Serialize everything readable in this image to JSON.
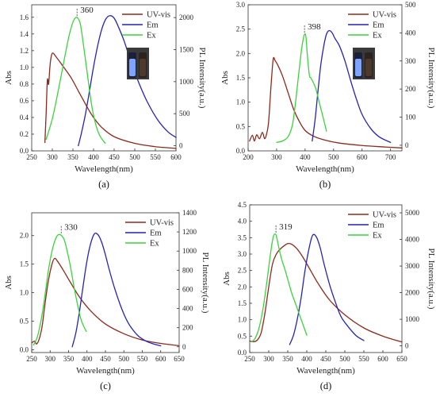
{
  "colors": {
    "uvvis": "#8B2A1E",
    "em": "#2424B4",
    "ex": "#3CD23C",
    "axis": "#333333"
  },
  "chart_data": [
    {
      "type": "line",
      "panel_label": "(a)",
      "xlabel": "Wavelength(nm)",
      "ylabel": "Abs",
      "y2label": "PL Intensity(a.u.)",
      "xlim": [
        250,
        600
      ],
      "ylim": [
        0,
        1.75
      ],
      "y2lim": [
        -80,
        2200
      ],
      "xticks": [
        "250",
        "300",
        "350",
        "400",
        "450",
        "500",
        "550",
        "600"
      ],
      "yticks": [
        "0.0",
        "0.2",
        "0.4",
        "0.6",
        "0.8",
        "1.0",
        "1.2",
        "1.4",
        "1.6"
      ],
      "y2ticks": [
        "0",
        "500",
        "1000",
        "1500",
        "2000"
      ],
      "peak_label": "360",
      "peak_x": 360,
      "inset_photo": true,
      "legend": [
        "UV-vis",
        "Em",
        "Ex"
      ],
      "series": [
        {
          "name": "UV-vis",
          "axis": "left",
          "color": "#8B2A1E",
          "x": [
            282,
            285,
            288,
            291,
            295,
            300,
            310,
            325,
            345,
            365,
            385,
            400,
            420,
            450,
            500,
            550,
            600
          ],
          "y": [
            0.1,
            0.45,
            0.85,
            0.8,
            1.05,
            1.17,
            1.12,
            1.02,
            0.88,
            0.7,
            0.52,
            0.4,
            0.28,
            0.17,
            0.09,
            0.05,
            0.03
          ]
        },
        {
          "name": "Em",
          "axis": "right",
          "color": "#2424B4",
          "x": [
            363,
            370,
            380,
            390,
            400,
            410,
            420,
            430,
            440,
            450,
            460,
            475,
            490,
            510,
            530,
            555,
            580,
            600
          ],
          "y": [
            0,
            180,
            480,
            850,
            1230,
            1560,
            1820,
            1980,
            2030,
            1990,
            1860,
            1620,
            1320,
            980,
            690,
            410,
            220,
            130
          ]
        },
        {
          "name": "Ex",
          "axis": "right",
          "color": "#3CD23C",
          "x": [
            285,
            300,
            315,
            330,
            340,
            350,
            357,
            362,
            368,
            375,
            385,
            395,
            405,
            415,
            428
          ],
          "y": [
            100,
            420,
            880,
            1380,
            1700,
            1930,
            2000,
            1990,
            1900,
            1600,
            1120,
            650,
            340,
            160,
            40
          ]
        }
      ]
    },
    {
      "type": "line",
      "panel_label": "(b)",
      "xlabel": "Wavelength(nm)",
      "ylabel": "Abs",
      "y2label": "PL Intensity(a.u.)",
      "xlim": [
        200,
        740
      ],
      "ylim": [
        0,
        3.0
      ],
      "y2lim": [
        -20,
        500
      ],
      "xticks": [
        "200",
        "300",
        "400",
        "500",
        "600",
        "700"
      ],
      "yticks": [
        "0.0",
        "0.5",
        "1.0",
        "1.5",
        "2.0",
        "2.5",
        "3.0"
      ],
      "y2ticks": [
        "0",
        "100",
        "200",
        "300",
        "400",
        "500"
      ],
      "peak_label": "398",
      "peak_x": 398,
      "inset_photo": true,
      "legend": [
        "UV-vis",
        "Em",
        "Ex"
      ],
      "series": [
        {
          "name": "UV-vis",
          "axis": "left",
          "color": "#8B2A1E",
          "x": [
            205,
            215,
            222,
            230,
            240,
            250,
            258,
            265,
            272,
            280,
            288,
            295,
            305,
            320,
            340,
            360,
            380,
            400,
            430,
            470,
            520,
            600,
            680,
            740
          ],
          "y": [
            0.2,
            0.32,
            0.2,
            0.33,
            0.25,
            0.38,
            0.25,
            0.35,
            0.6,
            1.3,
            1.88,
            1.85,
            1.75,
            1.55,
            1.2,
            0.85,
            0.6,
            0.42,
            0.3,
            0.22,
            0.16,
            0.11,
            0.08,
            0.06
          ]
        },
        {
          "name": "Em",
          "axis": "right",
          "color": "#2424B4",
          "x": [
            425,
            435,
            445,
            455,
            465,
            475,
            485,
            495,
            505,
            520,
            540,
            560,
            580,
            600,
            630,
            660,
            700
          ],
          "y": [
            15,
            90,
            190,
            285,
            350,
            395,
            408,
            400,
            380,
            355,
            300,
            230,
            165,
            110,
            60,
            30,
            10
          ]
        },
        {
          "name": "Ex",
          "axis": "right",
          "color": "#3CD23C",
          "x": [
            300,
            320,
            340,
            355,
            365,
            375,
            385,
            392,
            398,
            403,
            408,
            415,
            420,
            428,
            438,
            448,
            458,
            468,
            475
          ],
          "y": [
            10,
            15,
            30,
            70,
            140,
            230,
            320,
            370,
            395,
            385,
            320,
            250,
            240,
            225,
            200,
            160,
            120,
            80,
            50
          ]
        }
      ]
    },
    {
      "type": "line",
      "panel_label": "(c)",
      "xlabel": "Wavelength(nm)",
      "ylabel": "Abs",
      "y2label": "PL Intensity(a.u.)",
      "xlim": [
        250,
        650
      ],
      "ylim": [
        -0.05,
        2.4
      ],
      "y2lim": [
        -60,
        1400
      ],
      "xticks": [
        "250",
        "300",
        "350",
        "400",
        "450",
        "500",
        "550",
        "600",
        "650"
      ],
      "yticks": [
        "0.0",
        "0.5",
        "1.0",
        "1.5",
        "2.0"
      ],
      "y2ticks": [
        "0",
        "200",
        "400",
        "600",
        "800",
        "1000",
        "1200",
        "1400"
      ],
      "peak_label": "330",
      "peak_x": 330,
      "inset_photo": false,
      "legend": [
        "UV-vis",
        "Em",
        "Ex"
      ],
      "series": [
        {
          "name": "UV-vis",
          "axis": "left",
          "color": "#8B2A1E",
          "x": [
            250,
            258,
            263,
            270,
            278,
            286,
            295,
            305,
            312,
            320,
            335,
            355,
            380,
            410,
            450,
            500,
            550,
            600,
            650
          ],
          "y": [
            0.12,
            0.15,
            0.1,
            0.18,
            0.4,
            0.8,
            1.2,
            1.5,
            1.6,
            1.55,
            1.4,
            1.18,
            0.92,
            0.68,
            0.45,
            0.28,
            0.17,
            0.11,
            0.07
          ]
        },
        {
          "name": "Em",
          "axis": "right",
          "color": "#2424B4",
          "x": [
            360,
            370,
            380,
            390,
            400,
            410,
            420,
            430,
            440,
            450,
            460,
            475,
            490,
            505,
            520,
            540,
            560,
            580,
            600
          ],
          "y": [
            0,
            150,
            380,
            650,
            900,
            1080,
            1180,
            1170,
            1090,
            960,
            810,
            610,
            440,
            300,
            200,
            110,
            60,
            30,
            10
          ]
        },
        {
          "name": "Ex",
          "axis": "right",
          "color": "#3CD23C",
          "x": [
            255,
            265,
            275,
            285,
            295,
            305,
            315,
            322,
            330,
            338,
            345,
            355,
            365,
            375,
            385,
            398
          ],
          "y": [
            20,
            100,
            270,
            510,
            790,
            1000,
            1130,
            1170,
            1165,
            1120,
            1020,
            840,
            620,
            430,
            270,
            160
          ]
        }
      ]
    },
    {
      "type": "line",
      "panel_label": "(d)",
      "xlabel": "Wavelength(nm)",
      "ylabel": "Abs",
      "y2label": "PL Intensity(a.u.)",
      "xlim": [
        250,
        650
      ],
      "ylim": [
        0,
        4.5
      ],
      "y2lim": [
        -250,
        5300
      ],
      "xticks": [
        "250",
        "300",
        "350",
        "400",
        "450",
        "500",
        "550",
        "600",
        "650"
      ],
      "yticks": [
        "0.0",
        "0.5",
        "1.0",
        "1.5",
        "2.0",
        "2.5",
        "3.0",
        "3.5",
        "4.0",
        "4.5"
      ],
      "y2ticks": [
        "0",
        "1000",
        "2000",
        "3000",
        "4000",
        "5000"
      ],
      "peak_label": "319",
      "peak_x": 319,
      "inset_photo": false,
      "legend": [
        "UV-vis",
        "Em",
        "Ex"
      ],
      "series": [
        {
          "name": "UV-vis",
          "axis": "left",
          "color": "#8B2A1E",
          "x": [
            250,
            260,
            270,
            280,
            290,
            300,
            310,
            320,
            330,
            340,
            350,
            360,
            375,
            390,
            410,
            430,
            460,
            500,
            550,
            600,
            650
          ],
          "y": [
            0.35,
            0.33,
            0.38,
            0.6,
            1.2,
            2.0,
            2.7,
            3.0,
            3.15,
            3.25,
            3.32,
            3.3,
            3.15,
            2.9,
            2.5,
            2.1,
            1.6,
            1.15,
            0.75,
            0.5,
            0.32
          ]
        },
        {
          "name": "Em",
          "axis": "right",
          "color": "#2424B4",
          "x": [
            355,
            365,
            375,
            385,
            395,
            405,
            415,
            425,
            435,
            445,
            460,
            475,
            490,
            510,
            530,
            550
          ],
          "y": [
            50,
            400,
            1000,
            1800,
            2800,
            3600,
            4150,
            4100,
            3700,
            3100,
            2300,
            1650,
            1100,
            700,
            380,
            200
          ]
        },
        {
          "name": "Ex",
          "axis": "right",
          "color": "#3CD23C",
          "x": [
            255,
            265,
            275,
            285,
            295,
            305,
            312,
            318,
            322,
            328,
            335,
            342,
            350,
            360,
            370,
            380,
            390,
            400
          ],
          "y": [
            150,
            300,
            700,
            1400,
            2400,
            3500,
            4100,
            4200,
            4000,
            3600,
            3200,
            2900,
            2500,
            2000,
            1600,
            1200,
            800,
            400
          ]
        }
      ]
    }
  ]
}
